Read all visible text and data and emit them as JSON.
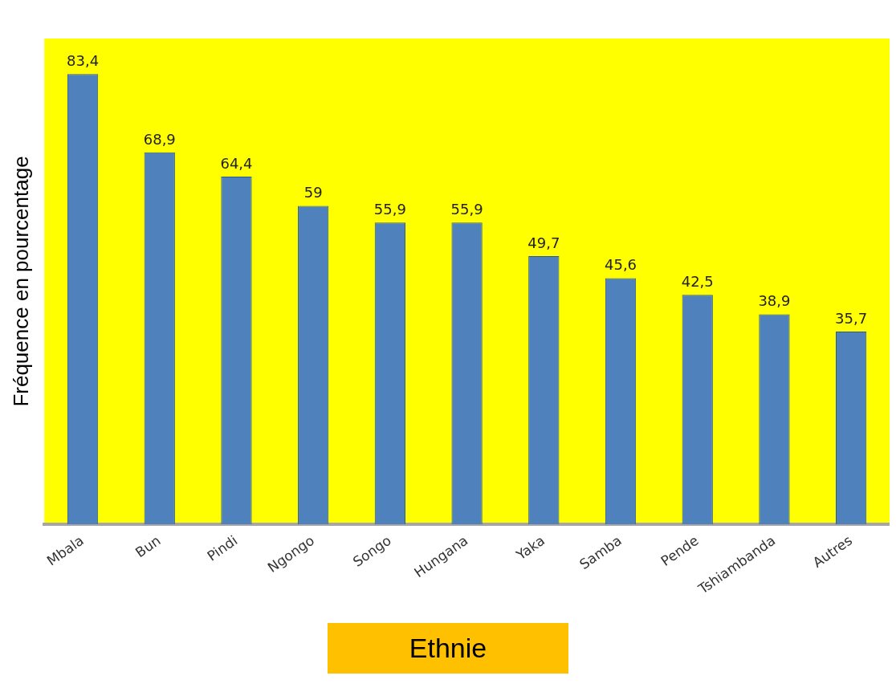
{
  "chart_data": {
    "type": "bar",
    "xlabel": "Ethnie",
    "ylabel": "Fréquence en pourcentage",
    "relative": false,
    "categories": [
      "Mbala",
      "Bun",
      "Pindi",
      "Ngongo",
      "Songo",
      "Hungana",
      "Yaka",
      "Samba",
      "Pende",
      "Tshiambanda",
      "Autres"
    ],
    "values": [
      83.4,
      68.9,
      64.4,
      59,
      55.9,
      55.9,
      49.7,
      45.6,
      42.5,
      38.9,
      35.7
    ],
    "value_labels": [
      "83,4",
      "68,9",
      "64,4",
      "59",
      "55,9",
      "55,9",
      "49,7",
      "45,6",
      "42,5",
      "38,9",
      "35,7"
    ],
    "color": "#4f81bd",
    "grid": false,
    "legend": false
  }
}
